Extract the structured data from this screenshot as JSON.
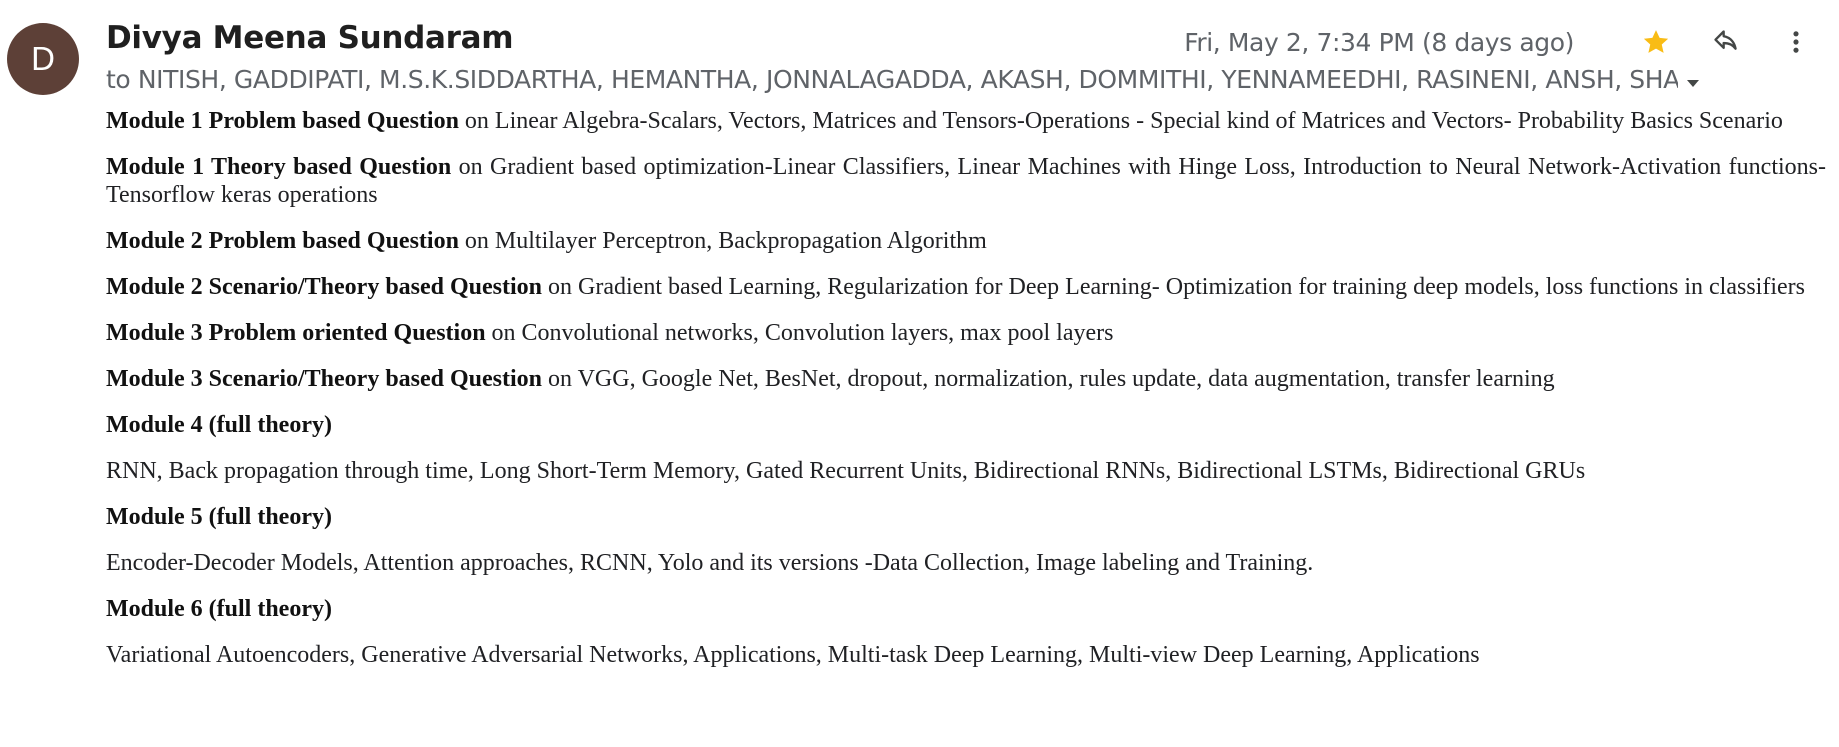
{
  "sender": {
    "initial": "D",
    "avatar_color": "#5d4037",
    "name": "Divya Meena Sundaram"
  },
  "meta": {
    "date": "Fri, May 2, 7:34 PM (8 days ago)",
    "star_color": "#f9bc15"
  },
  "recipients": {
    "text": "to NITISH, GADDIPATI, M.S.K.SIDDARTHA, HEMANTHA, JONNALAGADDA, AKASH, DOMMITHI, YENNAMEEDHI, RASINENI, ANSH, SHAIK"
  },
  "body": {
    "items": [
      {
        "bold": "Module 1 Problem based Question",
        "text": " on Linear Algebra-Scalars, Vectors, Matrices and Tensors-Operations - Special kind of Matrices and Vectors- Probability Basics Scenario"
      },
      {
        "bold": "Module 1 Theory based Question",
        "text": " on Gradient based optimization-Linear Classifiers, Linear Machines with Hinge Loss, Introduction to Neural Network-Activation functions-Tensorflow keras operations"
      },
      {
        "bold": "Module 2 Problem based Question",
        "text": " on Multilayer Perceptron, Backpropagation Algorithm"
      },
      {
        "bold": "Module 2 Scenario/Theory based Question",
        "text": " on Gradient based Learning, Regularization for Deep Learning- Optimization for training deep models, loss functions in classifiers"
      },
      {
        "bold": "Module 3 Problem oriented Question",
        "text": " on Convolutional networks, Convolution layers, max pool layers"
      },
      {
        "bold": "Module 3 Scenario/Theory based Question",
        "text": " on VGG, Google Net, BesNet, dropout, normalization, rules update, data augmentation, transfer learning"
      },
      {
        "bold": "Module 4 (full theory)",
        "text": ""
      },
      {
        "bold": "",
        "text": "RNN, Back propagation through time, Long Short-Term Memory, Gated Recurrent Units, Bidirectional RNNs, Bidirectional LSTMs, Bidirectional GRUs"
      },
      {
        "bold": "Module 5 (full theory)",
        "text": ""
      },
      {
        "bold": "",
        "text": "Encoder-Decoder Models, Attention approaches, RCNN, Yolo and its versions -Data Collection, Image labeling and Training."
      },
      {
        "bold": "Module 6 (full theory)",
        "text": ""
      },
      {
        "bold": "",
        "text": "Variational Autoencoders, Generative Adversarial Networks, Applications, Multi-task Deep Learning, Multi-view Deep Learning, Applications"
      }
    ]
  },
  "icons": {
    "star": "star-icon",
    "reply": "reply-icon",
    "more": "more-vert-icon",
    "caret": "caret-down-icon"
  }
}
